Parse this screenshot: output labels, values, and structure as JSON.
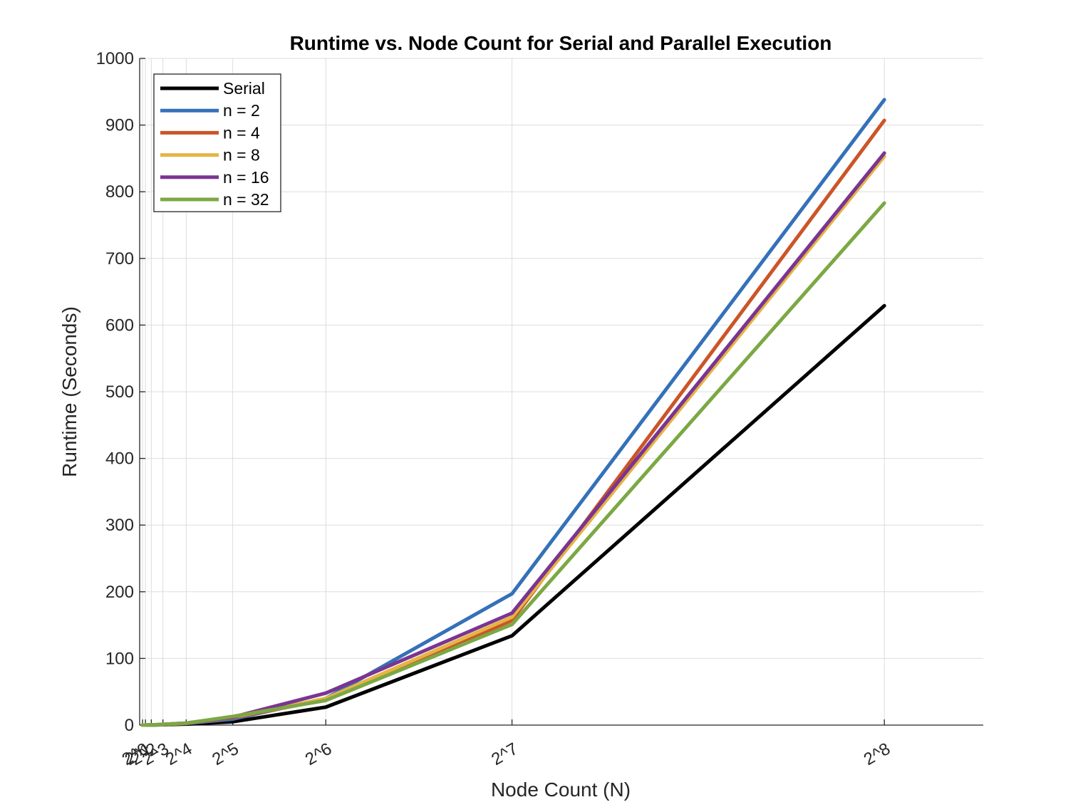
{
  "chart_data": {
    "type": "line",
    "title": "Runtime vs. Node Count for Serial and Parallel Execution",
    "xlabel": "Node Count (N)",
    "ylabel": "Runtime (Seconds)",
    "x": [
      1,
      2,
      4,
      8,
      16,
      32,
      64,
      128,
      256
    ],
    "x_tick_labels": [
      "2^0",
      "2^1",
      "2^2",
      "2^3",
      "2^4",
      "2^5",
      "2^6",
      "2^7",
      "2^8"
    ],
    "xlim": [
      0,
      290
    ],
    "ylim": [
      0,
      1000
    ],
    "y_ticks": [
      0,
      100,
      200,
      300,
      400,
      500,
      600,
      700,
      800,
      900,
      1000
    ],
    "grid": true,
    "legend_position": "top-left",
    "series": [
      {
        "name": "Serial",
        "color": "#000000",
        "values": [
          0,
          0,
          0.1,
          0.5,
          1.5,
          5,
          27,
          134,
          629
        ]
      },
      {
        "name": "n = 2",
        "color": "#3471b8",
        "values": [
          0,
          0,
          0.3,
          0.8,
          2.5,
          9,
          40,
          197,
          938
        ]
      },
      {
        "name": "n = 4",
        "color": "#cb5528",
        "values": [
          0,
          0,
          0.3,
          0.8,
          2.6,
          11,
          38,
          157,
          907
        ]
      },
      {
        "name": "n = 8",
        "color": "#e6b443",
        "values": [
          0,
          0,
          0.3,
          0.9,
          2.8,
          12,
          40,
          162,
          853
        ]
      },
      {
        "name": "n = 16",
        "color": "#7a3591",
        "values": [
          0,
          0,
          0.3,
          1.0,
          3.0,
          12,
          48,
          168,
          858
        ]
      },
      {
        "name": "n = 32",
        "color": "#7ba843",
        "values": [
          0,
          0,
          0.3,
          1.0,
          3.0,
          13,
          37,
          151,
          783
        ]
      }
    ]
  }
}
